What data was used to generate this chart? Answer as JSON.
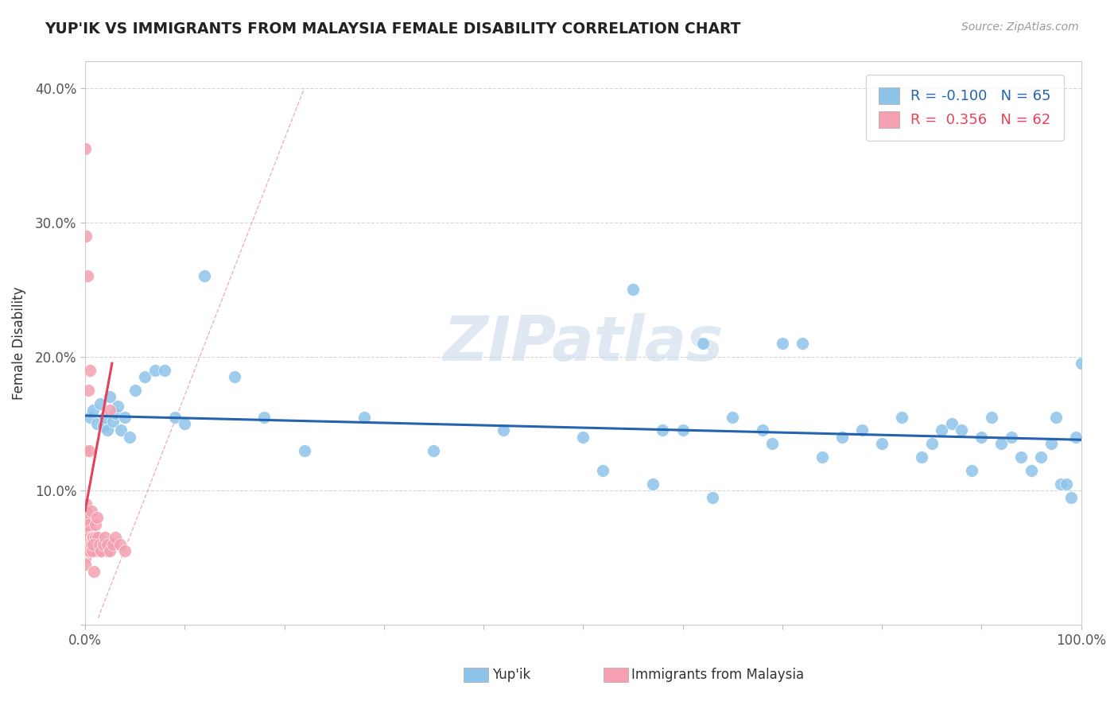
{
  "title": "YUP'IK VS IMMIGRANTS FROM MALAYSIA FEMALE DISABILITY CORRELATION CHART",
  "source": "Source: ZipAtlas.com",
  "ylabel": "Female Disability",
  "xlim": [
    0,
    1.0
  ],
  "ylim": [
    0,
    0.42
  ],
  "legend_blue_r": "-0.100",
  "legend_blue_n": "65",
  "legend_pink_r": "0.356",
  "legend_pink_n": "62",
  "blue_color": "#8ec4ea",
  "pink_color": "#f4a0b0",
  "blue_line_color": "#2563ae",
  "pink_line_color": "#e8405a",
  "dashed_line_color": "#e8a0aa",
  "background_color": "#ffffff",
  "blue_x": [
    0.005,
    0.008,
    0.012,
    0.015,
    0.018,
    0.02,
    0.022,
    0.025,
    0.028,
    0.03,
    0.033,
    0.036,
    0.04,
    0.045,
    0.05,
    0.06,
    0.07,
    0.08,
    0.09,
    0.1,
    0.12,
    0.15,
    0.18,
    0.22,
    0.28,
    0.35,
    0.42,
    0.5,
    0.55,
    0.58,
    0.6,
    0.62,
    0.65,
    0.68,
    0.7,
    0.72,
    0.74,
    0.76,
    0.78,
    0.8,
    0.82,
    0.84,
    0.85,
    0.86,
    0.87,
    0.88,
    0.89,
    0.9,
    0.91,
    0.92,
    0.93,
    0.94,
    0.95,
    0.96,
    0.97,
    0.975,
    0.98,
    0.985,
    0.99,
    0.995,
    0.52,
    0.57,
    0.63,
    0.69,
    1.0
  ],
  "blue_y": [
    0.155,
    0.16,
    0.15,
    0.165,
    0.148,
    0.155,
    0.145,
    0.17,
    0.152,
    0.158,
    0.163,
    0.145,
    0.155,
    0.14,
    0.175,
    0.185,
    0.19,
    0.19,
    0.155,
    0.15,
    0.26,
    0.185,
    0.155,
    0.13,
    0.155,
    0.13,
    0.145,
    0.14,
    0.25,
    0.145,
    0.145,
    0.21,
    0.155,
    0.145,
    0.21,
    0.21,
    0.125,
    0.14,
    0.145,
    0.135,
    0.155,
    0.125,
    0.135,
    0.145,
    0.15,
    0.145,
    0.115,
    0.14,
    0.155,
    0.135,
    0.14,
    0.125,
    0.115,
    0.125,
    0.135,
    0.155,
    0.105,
    0.105,
    0.095,
    0.14,
    0.115,
    0.105,
    0.095,
    0.135,
    0.195
  ],
  "pink_x": [
    0.0,
    0.0,
    0.0,
    0.0,
    0.0,
    0.0,
    0.0,
    0.0,
    0.0,
    0.0,
    0.001,
    0.001,
    0.001,
    0.001,
    0.001,
    0.002,
    0.002,
    0.002,
    0.002,
    0.003,
    0.003,
    0.003,
    0.004,
    0.004,
    0.005,
    0.005,
    0.006,
    0.007,
    0.008,
    0.009,
    0.01,
    0.011,
    0.012,
    0.013,
    0.015,
    0.016,
    0.018,
    0.02,
    0.022,
    0.025,
    0.0,
    0.001,
    0.002,
    0.003,
    0.004,
    0.005,
    0.006,
    0.007,
    0.008,
    0.009,
    0.01,
    0.012,
    0.014,
    0.016,
    0.018,
    0.02,
    0.022,
    0.025,
    0.028,
    0.03,
    0.035,
    0.04
  ],
  "pink_y": [
    0.13,
    0.085,
    0.06,
    0.055,
    0.05,
    0.065,
    0.07,
    0.075,
    0.08,
    0.045,
    0.075,
    0.09,
    0.085,
    0.08,
    0.06,
    0.06,
    0.055,
    0.065,
    0.06,
    0.075,
    0.055,
    0.06,
    0.055,
    0.06,
    0.07,
    0.065,
    0.06,
    0.065,
    0.065,
    0.06,
    0.065,
    0.055,
    0.06,
    0.065,
    0.06,
    0.055,
    0.06,
    0.06,
    0.055,
    0.16,
    0.355,
    0.29,
    0.26,
    0.175,
    0.13,
    0.19,
    0.085,
    0.055,
    0.06,
    0.04,
    0.075,
    0.08,
    0.06,
    0.055,
    0.06,
    0.065,
    0.06,
    0.055,
    0.06,
    0.065,
    0.06,
    0.055
  ]
}
